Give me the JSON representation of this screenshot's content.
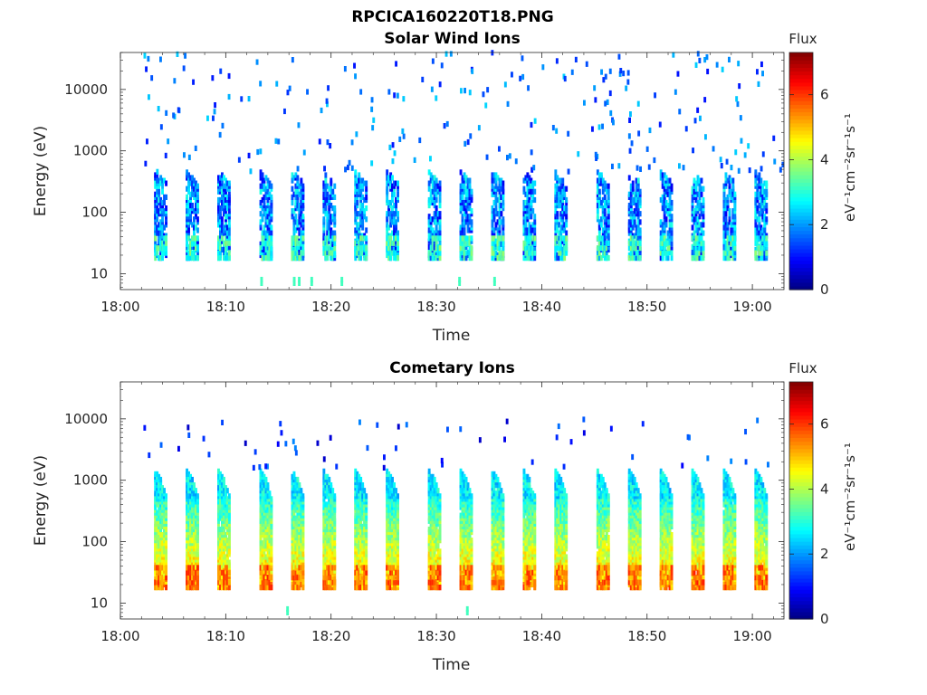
{
  "figure": {
    "title": "RPCICA160220T18.PNG"
  },
  "chart_data": [
    {
      "type": "heatmap",
      "title": "Solar Wind Ions",
      "xlabel": "Time",
      "ylabel": "Energy (eV)",
      "xlim": [
        "18:00",
        "19:03"
      ],
      "x_ticks": [
        "18:00",
        "18:10",
        "18:20",
        "18:30",
        "18:40",
        "18:50",
        "19:00"
      ],
      "y_scale": "log",
      "ylim": [
        5.5,
        40000
      ],
      "y_ticks": [
        10,
        100,
        1000,
        10000
      ],
      "y_tick_labels": [
        "10",
        "100",
        "1000",
        "10000"
      ],
      "colorbar": {
        "label": "Flux",
        "unit_label": "eV⁻¹cm⁻²sr⁻¹s⁻¹",
        "range": [
          0,
          7.3
        ],
        "ticks": [
          0,
          2,
          4,
          6
        ],
        "colormap": "jet"
      },
      "bursts_start_time": [
        "18:03",
        "18:06",
        "18:09",
        "18:13",
        "18:16",
        "18:19",
        "18:22",
        "18:25",
        "18:29",
        "18:32",
        "18:35",
        "18:38",
        "18:41",
        "18:45",
        "18:48",
        "18:51",
        "18:54",
        "18:57",
        "19:00"
      ],
      "burst_energy_range_eV": [
        18,
        450
      ],
      "burst_typical_flux": [
        1.0,
        3.0
      ],
      "low_energy_band": {
        "energy_eV": [
          18,
          40
        ],
        "flux": [
          2.5,
          3.8
        ]
      },
      "sparse_high_energy": {
        "energy_eV": [
          450,
          40000
        ],
        "flux": [
          1.0,
          2.5
        ]
      }
    },
    {
      "type": "heatmap",
      "title": "Cometary Ions",
      "xlabel": "Time",
      "ylabel": "Energy (eV)",
      "xlim": [
        "18:00",
        "19:03"
      ],
      "x_ticks": [
        "18:00",
        "18:10",
        "18:20",
        "18:30",
        "18:40",
        "18:50",
        "19:00"
      ],
      "y_scale": "log",
      "ylim": [
        5.5,
        40000
      ],
      "y_ticks": [
        10,
        100,
        1000,
        10000
      ],
      "y_tick_labels": [
        "10",
        "100",
        "1000",
        "10000"
      ],
      "colorbar": {
        "label": "Flux",
        "unit_label": "eV⁻¹cm⁻²sr⁻¹s⁻¹",
        "range": [
          0,
          7.3
        ],
        "ticks": [
          0,
          2,
          4,
          6
        ],
        "colormap": "jet"
      },
      "bursts_start_time": [
        "18:03",
        "18:06",
        "18:09",
        "18:13",
        "18:16",
        "18:19",
        "18:22",
        "18:25",
        "18:29",
        "18:32",
        "18:35",
        "18:38",
        "18:41",
        "18:45",
        "18:48",
        "18:51",
        "18:54",
        "18:57",
        "19:00"
      ],
      "burst_energy_range_eV": [
        18,
        1500
      ],
      "burst_typical_flux": [
        3.0,
        5.5
      ],
      "low_energy_band": {
        "energy_eV": [
          18,
          40
        ],
        "flux": [
          5.0,
          6.2
        ]
      },
      "sparse_high_energy": {
        "energy_eV": [
          1500,
          10000
        ],
        "flux": [
          0.5,
          2.0
        ]
      }
    }
  ]
}
